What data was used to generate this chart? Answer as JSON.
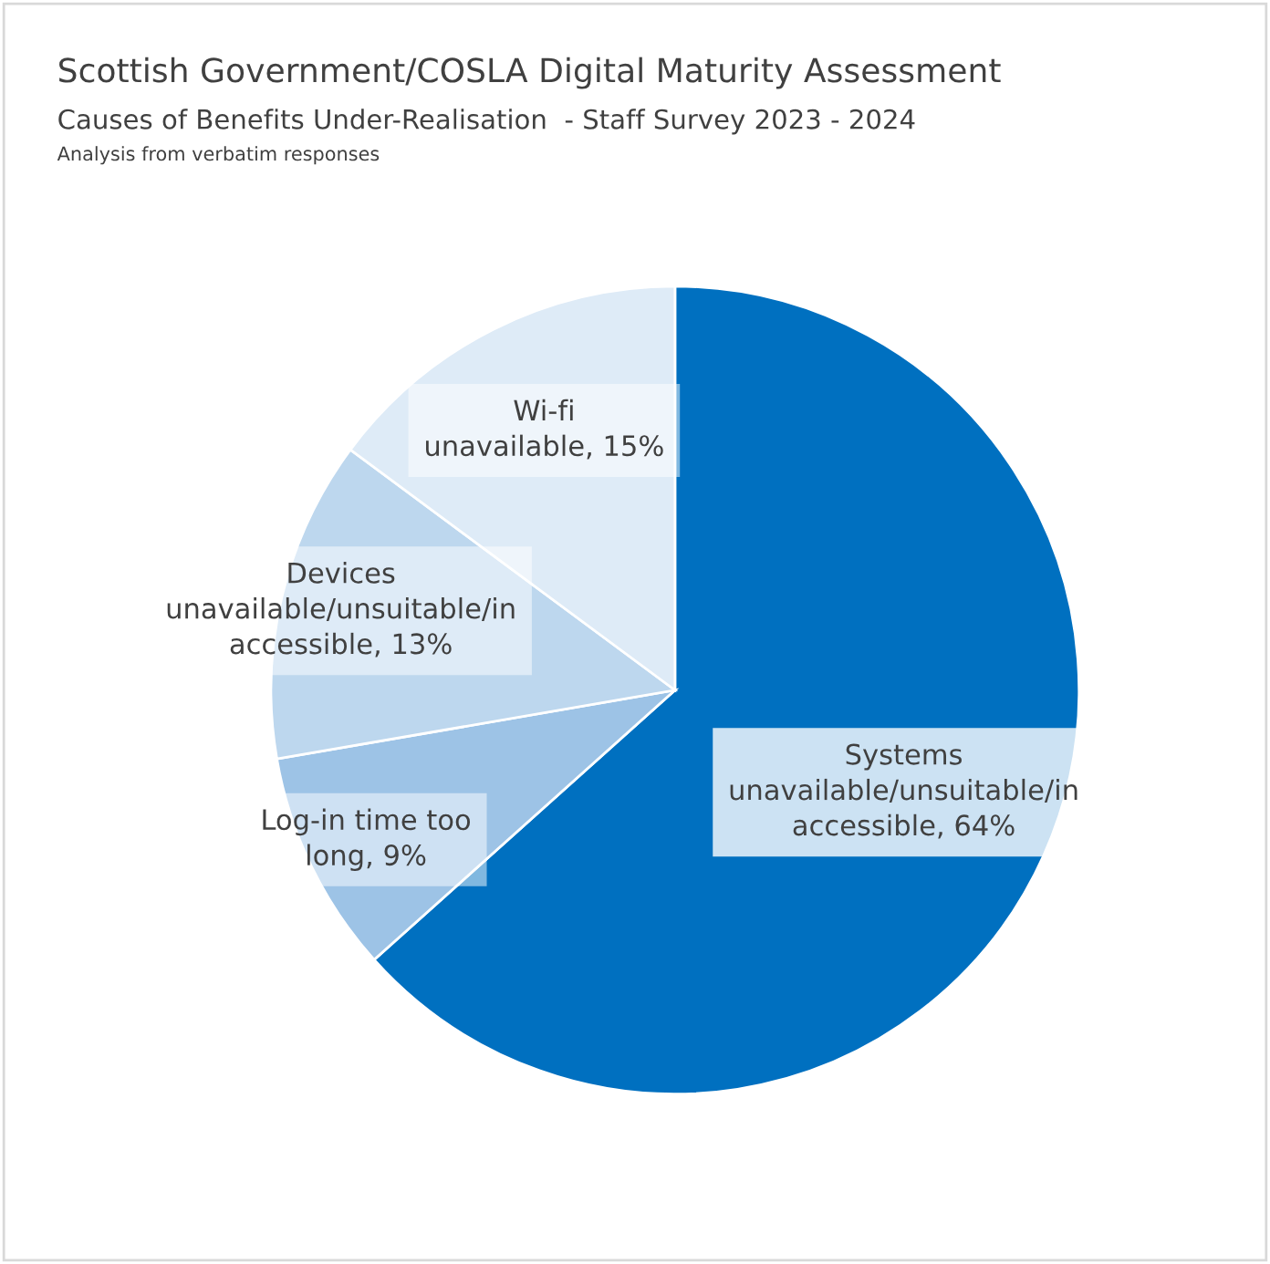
{
  "chart_data": {
    "type": "pie",
    "title": "Scottish Government/COSLA Digital Maturity Assessment",
    "subtitle": "Causes of Benefits Under-Realisation  - Staff Survey 2023 - 2024",
    "annotations": [
      "Analysis from verbatim responses"
    ],
    "categories": [
      "Systems\nunavailable/unsuitable/in\naccessible",
      "Log-in time too\nlong",
      "Devices\nunavailable/unsuitable/in\naccessible",
      "Wi-fi\nunavailable"
    ],
    "values": [
      64,
      9,
      13,
      15
    ],
    "value_labels": [
      "64%",
      "9%",
      "13%",
      "15%"
    ],
    "colors": [
      "#0070c0",
      "#9dc3e6",
      "#bdd7ee",
      "#deebf7"
    ]
  }
}
